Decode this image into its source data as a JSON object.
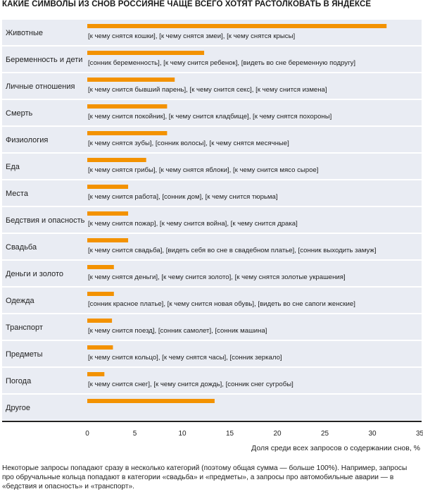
{
  "title": "КАКИЕ СИМВОЛЫ ИЗ СНОВ РОССИЯНЕ ЧАЩЕ ВСЕГО ХОТЯТ РАСТОЛКОВАТЬ В ЯНДЕКСЕ",
  "footnote": "Некоторые запросы попадают сразу в несколько категорий (поэтому общая сумма — больше 100%). Например, запросы про обручальные кольца попадают в категории «свадьба» и «предметы», а запросы про автомобильные аварии — в «бедствия и опасность» и «транспорт».",
  "colors": {
    "bar": "#f39200",
    "row_bg": "#e9ecf3",
    "axis": "#222222"
  },
  "chart_data": {
    "type": "bar",
    "orientation": "horizontal",
    "categories": [
      "Животные",
      "Беременность и дети",
      "Личные отношения",
      "Смерть",
      "Физиология",
      "Еда",
      "Места",
      "Бедствия и опасность",
      "Свадьба",
      "Деньги и золото",
      "Одежда",
      "Транспорт",
      "Предметы",
      "Погода",
      "Другое"
    ],
    "values": [
      31.5,
      12.3,
      9.2,
      8.4,
      8.4,
      6.2,
      4.3,
      4.3,
      4.3,
      2.8,
      2.8,
      2.6,
      2.7,
      1.8,
      13.4
    ],
    "examples": [
      "[к чему снятся кошки], [к чему снятся змеи], [к чему снятся крысы]",
      "[сонник беременность], [к чему снится ребенок], [видеть во сне беременную подругу]",
      "[к чему снится бывший парень], [к чему снится секс], [к чему снится измена]",
      "[к чему снится покойник], [к чему снится кладбище], [к чему снятся похороны]",
      "[к чему снятся зубы], [сонник волосы], [к чему снятся месячные]",
      "[к чему снятся грибы], [к чему снятся яблоки], [к чему снится мясо сырое]",
      "[к чему снится работа], [сонник дом], [к чему снится тюрьма]",
      "[к чему снится пожар], [к чему снится война], [к чему снится драка]",
      "[к чему снится свадьба], [видеть себя во сне в свадебном платье], [сонник выходить замуж]",
      "[к чему снятся деньги], [к чему снится золото], [к чему снятся золотые украшения]",
      "[сонник красное платье], [к чему снится новая обувь], [видеть во сне сапоги женские]",
      "[к чему снится поезд], [сонник самолет], [сонник машина]",
      "[к чему снится кольцо], [к чему снятся часы], [сонник зеркало]",
      "[к чему снится снег], [к чему снится дождь], [сонник снег сугробы]",
      ""
    ],
    "xlim": [
      0,
      35
    ],
    "xticks": [
      0,
      5,
      10,
      15,
      20,
      25,
      30,
      35
    ],
    "xlabel": "Доля среди всех запросов о содержании снов, %",
    "grid": false,
    "legend": "none"
  }
}
